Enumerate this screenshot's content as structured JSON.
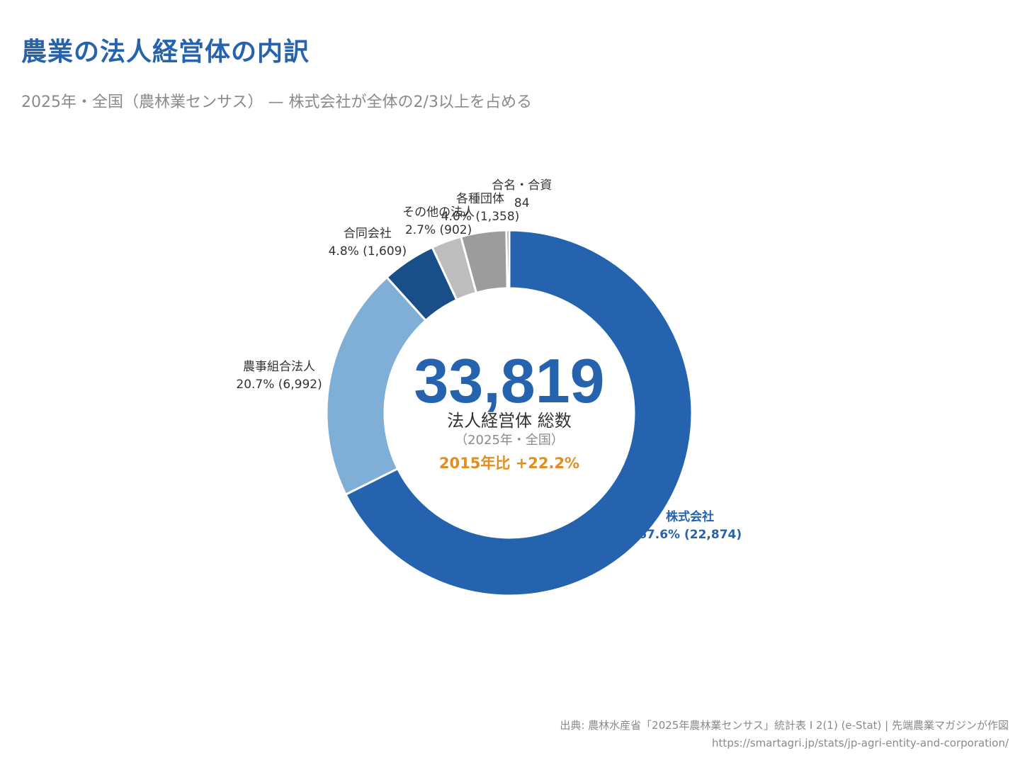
{
  "header": {
    "title": "農業の法人経営体の内訳",
    "subtitle": "2025年・全国（農林業センサス） — 株式会社が全体の2/3以上を占める"
  },
  "center": {
    "total": "33,819",
    "label": "法人経営体 総数",
    "sublabel": "（2025年・全国）",
    "change": "2015年比 +22.2%"
  },
  "colors": {
    "title": "#2563AE",
    "accent_orange": "#E38D21",
    "text_dark": "#333333",
    "text_gray": "#8a8a8a"
  },
  "chart_data": {
    "type": "pie",
    "variant": "donut",
    "start_angle_deg": 0,
    "direction": "clockwise",
    "slices": [
      {
        "name": "株式会社",
        "value": 22874,
        "percent": 67.6,
        "label_line2": "67.6% (22,874)",
        "color": "#2563AE",
        "highlight": true
      },
      {
        "name": "農事組合法人",
        "value": 6992,
        "percent": 20.7,
        "label_line2": "20.7% (6,992)",
        "color": "#7FAED6"
      },
      {
        "name": "合同会社",
        "value": 1609,
        "percent": 4.8,
        "label_line2": "4.8% (1,609)",
        "color": "#184F88"
      },
      {
        "name": "その他の法人",
        "value": 902,
        "percent": 2.7,
        "label_line2": "2.7% (902)",
        "color": "#BDBDBD"
      },
      {
        "name": "各種団体",
        "value": 1358,
        "percent": 4.0,
        "label_line2": "4.0% (1,358)",
        "color": "#9C9C9C"
      },
      {
        "name": "合名・合資",
        "value": 84,
        "percent": 0.2,
        "label_line2": "84",
        "color": "#6E6E6E"
      }
    ]
  },
  "footer": {
    "source": "出典: 農林水産省「2025年農林業センサス」統計表 I 2(1) (e-Stat) | 先端農業マガジンが作図",
    "url": "https://smartagri.jp/stats/jp-agri-entity-and-corporation/"
  }
}
